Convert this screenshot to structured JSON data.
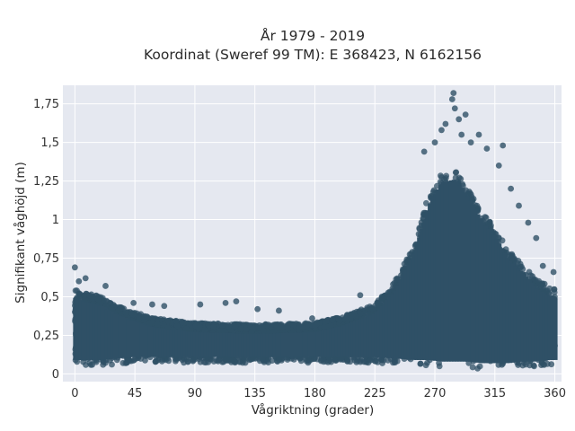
{
  "chart_data": {
    "type": "scatter",
    "title_lines": [
      "År 1979 - 2019",
      "Koordinat (Sweref 99 TM): E 368423, N 6162156"
    ],
    "xlabel": "Vågriktning (grader)",
    "ylabel": "Signifikant våghöjd (m)",
    "xlim": [
      -9,
      365
    ],
    "ylim": [
      -0.05,
      1.87
    ],
    "x_ticks": [
      0,
      45,
      90,
      135,
      180,
      225,
      270,
      315,
      360
    ],
    "x_tick_labels": [
      "0",
      "45",
      "90",
      "135",
      "180",
      "225",
      "270",
      "315",
      "360"
    ],
    "y_ticks": [
      0,
      0.25,
      0.5,
      0.75,
      1,
      1.25,
      1.5,
      1.75
    ],
    "y_tick_labels": [
      "0",
      "0,25",
      "0,5",
      "0,75",
      "1",
      "1,25",
      "1,5",
      "1,75"
    ],
    "grid": true,
    "marker_color": "#2f5066",
    "plot_background": "#e5e8f0",
    "envelope": {
      "x": [
        0,
        10,
        20,
        30,
        45,
        60,
        90,
        135,
        180,
        200,
        225,
        240,
        255,
        265,
        275,
        285,
        295,
        305,
        315,
        325,
        335,
        345,
        355,
        360
      ],
      "lower": [
        0.05,
        0.05,
        0.05,
        0.06,
        0.07,
        0.07,
        0.07,
        0.07,
        0.07,
        0.07,
        0.07,
        0.06,
        0.05,
        0.05,
        0.04,
        0.04,
        0.04,
        0.03,
        0.03,
        0.03,
        0.04,
        0.04,
        0.05,
        0.05
      ],
      "upper": [
        0.55,
        0.52,
        0.5,
        0.45,
        0.4,
        0.36,
        0.33,
        0.32,
        0.33,
        0.37,
        0.45,
        0.6,
        0.85,
        1.15,
        1.3,
        1.32,
        1.2,
        1.05,
        0.95,
        0.8,
        0.72,
        0.62,
        0.57,
        0.55
      ]
    },
    "outliers": [
      {
        "x": 0,
        "y": 0.69
      },
      {
        "x": 3,
        "y": 0.6
      },
      {
        "x": 8,
        "y": 0.62
      },
      {
        "x": 23,
        "y": 0.57
      },
      {
        "x": 44,
        "y": 0.46
      },
      {
        "x": 58,
        "y": 0.45
      },
      {
        "x": 67,
        "y": 0.44
      },
      {
        "x": 94,
        "y": 0.45
      },
      {
        "x": 113,
        "y": 0.46
      },
      {
        "x": 121,
        "y": 0.47
      },
      {
        "x": 137,
        "y": 0.42
      },
      {
        "x": 153,
        "y": 0.41
      },
      {
        "x": 178,
        "y": 0.36
      },
      {
        "x": 214,
        "y": 0.51
      },
      {
        "x": 262,
        "y": 1.44
      },
      {
        "x": 270,
        "y": 1.5
      },
      {
        "x": 275,
        "y": 1.58
      },
      {
        "x": 278,
        "y": 1.62
      },
      {
        "x": 283,
        "y": 1.78
      },
      {
        "x": 285,
        "y": 1.72
      },
      {
        "x": 284,
        "y": 1.82
      },
      {
        "x": 288,
        "y": 1.65
      },
      {
        "x": 293,
        "y": 1.68
      },
      {
        "x": 290,
        "y": 1.55
      },
      {
        "x": 297,
        "y": 1.5
      },
      {
        "x": 303,
        "y": 1.55
      },
      {
        "x": 309,
        "y": 1.46
      },
      {
        "x": 318,
        "y": 1.35
      },
      {
        "x": 321,
        "y": 1.48
      },
      {
        "x": 327,
        "y": 1.2
      },
      {
        "x": 333,
        "y": 1.09
      },
      {
        "x": 340,
        "y": 0.98
      },
      {
        "x": 346,
        "y": 0.88
      },
      {
        "x": 351,
        "y": 0.7
      },
      {
        "x": 359,
        "y": 0.66
      }
    ]
  }
}
